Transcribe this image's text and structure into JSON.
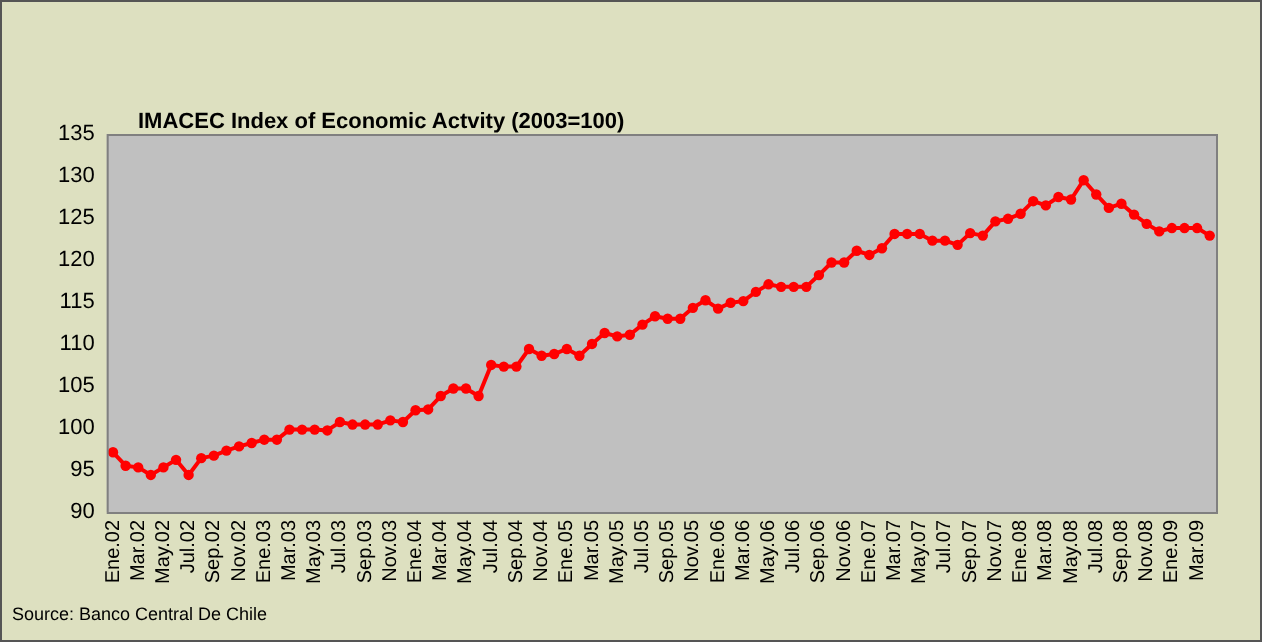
{
  "chart_data": {
    "type": "line",
    "title": "IMACEC Index of Economic Actvity (2003=100)",
    "categories": [
      "Ene.02",
      null,
      "Mar.02",
      null,
      "May.02",
      null,
      "Jul.02",
      null,
      "Sep.02",
      null,
      "Nov.02",
      null,
      "Ene.03",
      null,
      "Mar.03",
      null,
      "May.03",
      null,
      "Jul.03",
      null,
      "Sep.03",
      null,
      "Nov.03",
      null,
      "Ene.04",
      null,
      "Mar.04",
      null,
      "May.04",
      null,
      "Jul.04",
      null,
      "Sep.04",
      null,
      "Nov.04",
      null,
      "Ene.05",
      null,
      "Mar.05",
      null,
      "May.05",
      null,
      "Jul.05",
      null,
      "Sep.05",
      null,
      "Nov.05",
      null,
      "Ene.06",
      null,
      "Mar.06",
      null,
      "May.06",
      null,
      "Jul.06",
      null,
      "Sep.06",
      null,
      "Nov.06",
      null,
      "Ene.07",
      null,
      "Mar.07",
      null,
      "May.07",
      null,
      "Jul.07",
      null,
      "Sep.07",
      null,
      "Nov.07",
      null,
      "Ene.08",
      null,
      "Mar.08",
      null,
      "May.08",
      null,
      "Jul.08",
      null,
      "Sep.08",
      null,
      "Nov.08",
      null,
      "Ene.09",
      null,
      "Mar.09",
      null
    ],
    "series": [
      {
        "color": "#ff0000",
        "values": [
          97.1,
          95.5,
          95.3,
          94.4,
          95.3,
          96.2,
          94.4,
          96.4,
          96.7,
          97.3,
          97.8,
          98.2,
          98.6,
          98.6,
          99.8,
          99.8,
          99.8,
          99.7,
          100.7,
          100.4,
          100.4,
          100.4,
          100.9,
          100.7,
          102.1,
          102.2,
          103.8,
          104.7,
          104.7,
          103.8,
          107.5,
          107.3,
          107.3,
          109.4,
          108.6,
          108.8,
          109.4,
          108.6,
          110.0,
          111.3,
          110.9,
          111.1,
          112.3,
          113.3,
          113.0,
          113.0,
          114.3,
          115.2,
          114.2,
          114.9,
          115.1,
          116.2,
          117.1,
          116.8,
          116.8,
          116.8,
          118.2,
          119.7,
          119.7,
          121.1,
          120.6,
          121.4,
          123.1,
          123.1,
          123.1,
          122.3,
          122.3,
          121.8,
          123.2,
          122.9,
          124.6,
          124.9,
          125.5,
          127.0,
          126.5,
          127.5,
          127.2,
          129.5,
          127.8,
          126.2,
          126.7,
          125.4,
          124.3,
          123.4,
          123.8,
          123.8,
          123.8,
          122.9
        ]
      }
    ],
    "ylim": [
      90,
      135
    ],
    "yticks": [
      90,
      95,
      100,
      105,
      110,
      115,
      120,
      125,
      130,
      135
    ],
    "marker": "circle",
    "legend": false,
    "annotations": [
      "Source: Banco Central De Chile"
    ]
  }
}
